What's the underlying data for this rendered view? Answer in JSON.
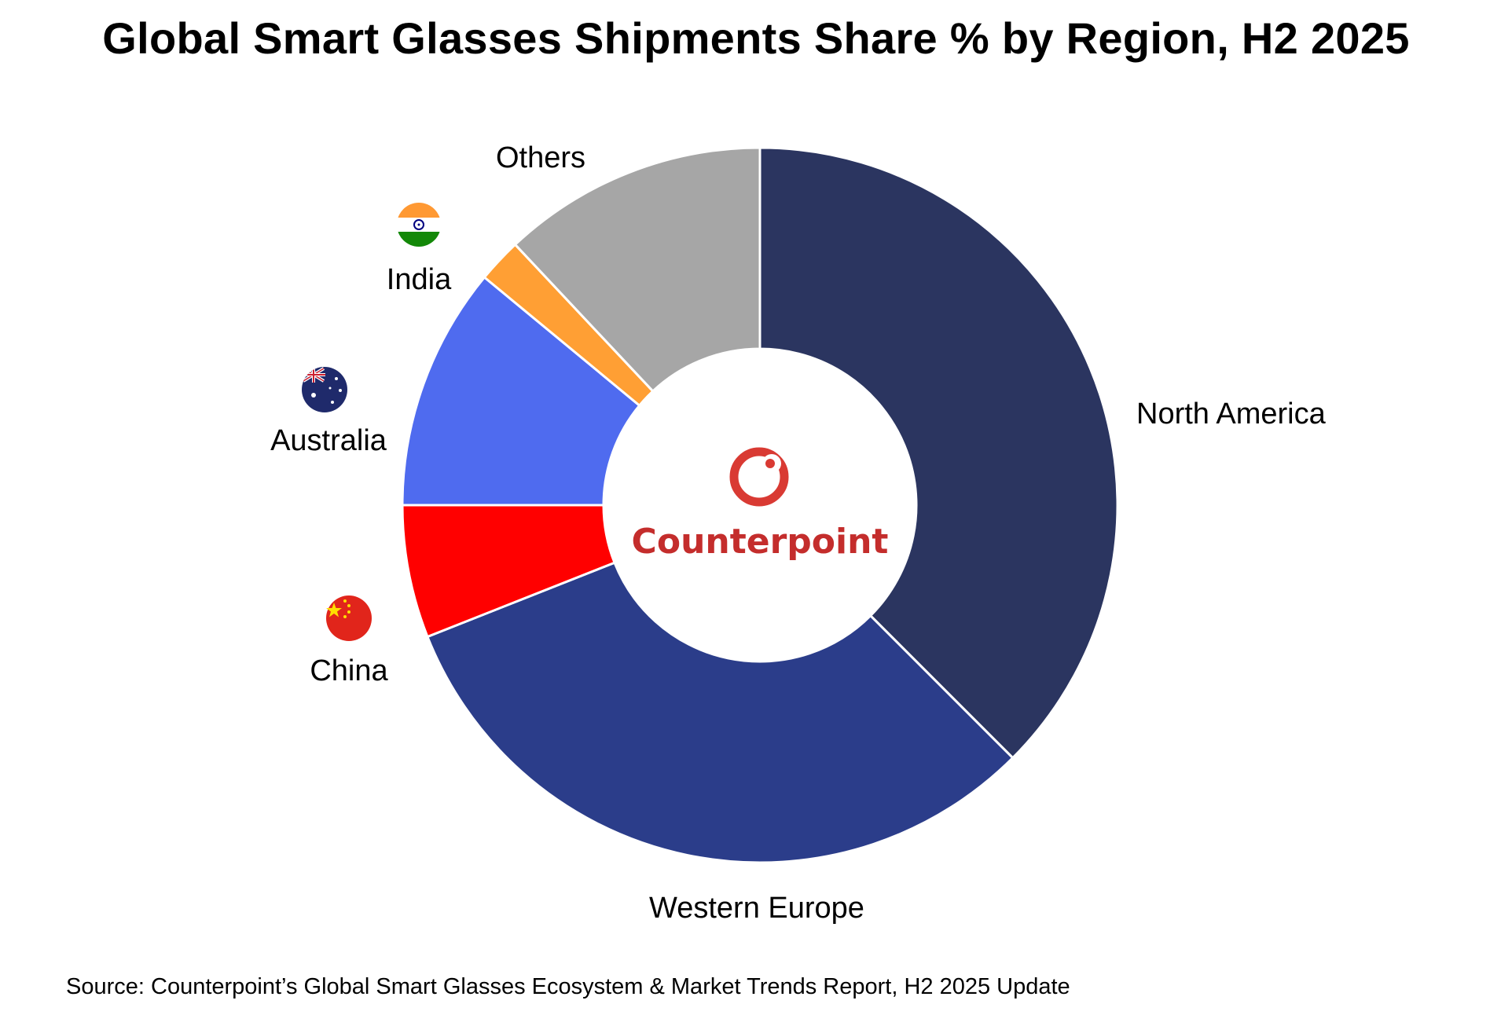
{
  "chart_data": {
    "type": "pie",
    "title": "Global Smart Glasses Shipments Share % by Region, H2 2025",
    "source": "Source: Counterpoint’s Global Smart Glasses Ecosystem & Market Trends Report, H2 2025 Update",
    "center_logo": "Counterpoint",
    "categories": [
      "North America",
      "Western Europe",
      "China",
      "Australia",
      "India",
      "Others"
    ],
    "values": [
      37.5,
      31.5,
      6.0,
      11.0,
      2.0,
      12.0
    ],
    "unit": "%",
    "colors": [
      "#2b3560",
      "#2b3d8a",
      "#ff0000",
      "#4f6bef",
      "#ff9f34",
      "#a6a6a6"
    ],
    "flags": {
      "India": "india-flag-icon",
      "Australia": "australia-flag-icon",
      "China": "china-flag-icon"
    },
    "start_angle": 0,
    "direction": "clockwise",
    "hole": "donut"
  }
}
